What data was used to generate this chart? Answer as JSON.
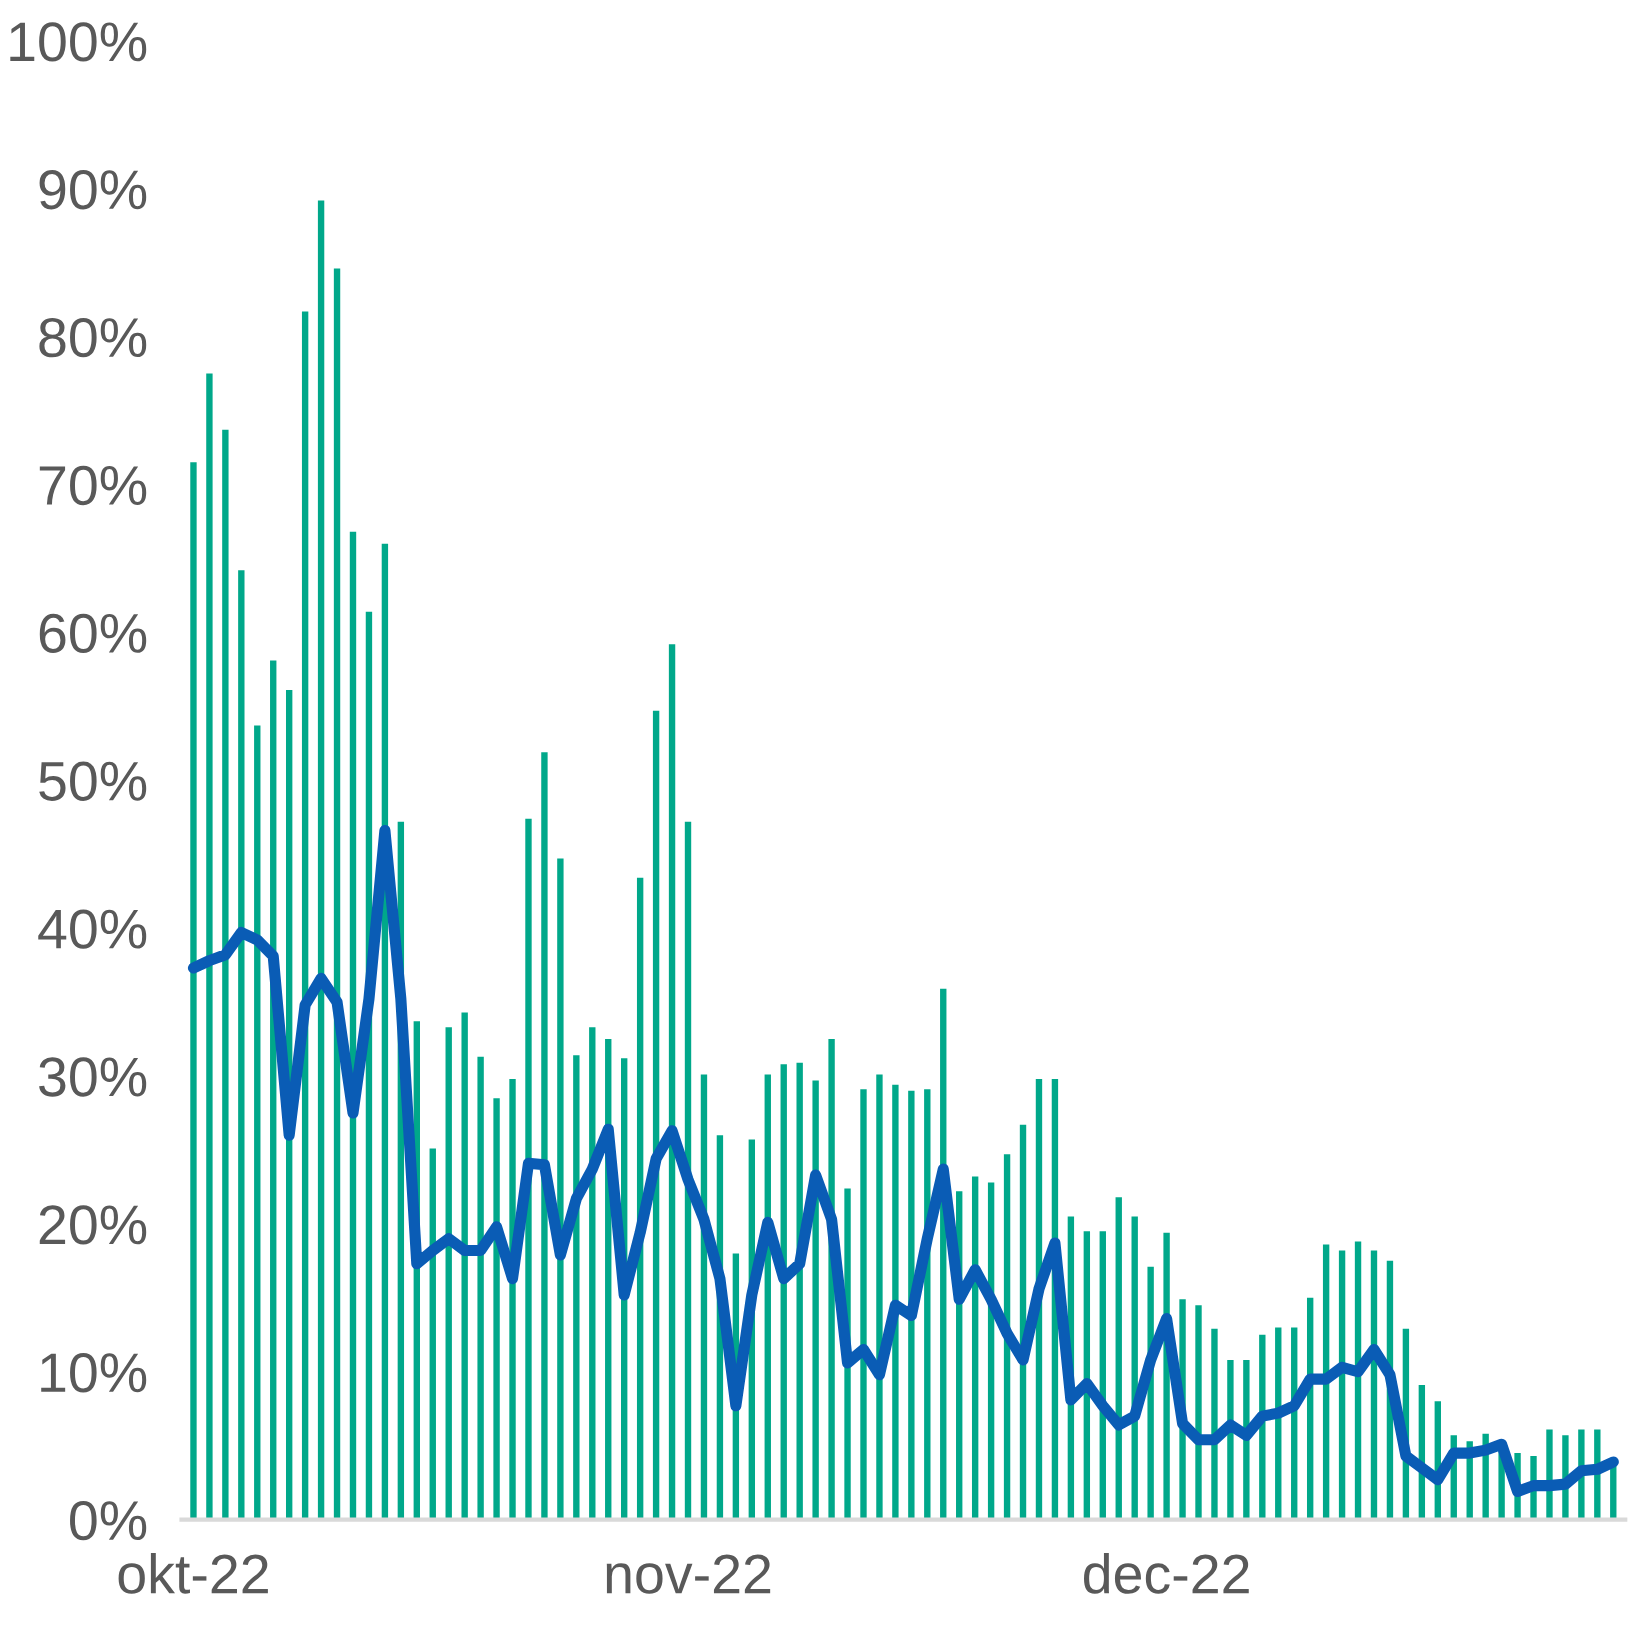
{
  "chart_data": {
    "type": "bar",
    "x": [
      "2022-10-01",
      "2022-10-02",
      "2022-10-03",
      "2022-10-04",
      "2022-10-05",
      "2022-10-06",
      "2022-10-07",
      "2022-10-08",
      "2022-10-09",
      "2022-10-10",
      "2022-10-11",
      "2022-10-12",
      "2022-10-13",
      "2022-10-14",
      "2022-10-15",
      "2022-10-16",
      "2022-10-17",
      "2022-10-18",
      "2022-10-19",
      "2022-10-20",
      "2022-10-21",
      "2022-10-22",
      "2022-10-23",
      "2022-10-24",
      "2022-10-25",
      "2022-10-26",
      "2022-10-27",
      "2022-10-28",
      "2022-10-29",
      "2022-10-30",
      "2022-10-31",
      "2022-11-01",
      "2022-11-02",
      "2022-11-03",
      "2022-11-04",
      "2022-11-05",
      "2022-11-06",
      "2022-11-07",
      "2022-11-08",
      "2022-11-09",
      "2022-11-10",
      "2022-11-11",
      "2022-11-12",
      "2022-11-13",
      "2022-11-14",
      "2022-11-15",
      "2022-11-16",
      "2022-11-17",
      "2022-11-18",
      "2022-11-19",
      "2022-11-20",
      "2022-11-21",
      "2022-11-22",
      "2022-11-23",
      "2022-11-24",
      "2022-11-25",
      "2022-11-26",
      "2022-11-27",
      "2022-11-28",
      "2022-11-29",
      "2022-11-30",
      "2022-12-01",
      "2022-12-02",
      "2022-12-03",
      "2022-12-04",
      "2022-12-05",
      "2022-12-06",
      "2022-12-07",
      "2022-12-08",
      "2022-12-09",
      "2022-12-10",
      "2022-12-11",
      "2022-12-12",
      "2022-12-13",
      "2022-12-14",
      "2022-12-15",
      "2022-12-16",
      "2022-12-17",
      "2022-12-18",
      "2022-12-19",
      "2022-12-20",
      "2022-12-21",
      "2022-12-22",
      "2022-12-23",
      "2022-12-24",
      "2022-12-25",
      "2022-12-26",
      "2022-12-27",
      "2022-12-28",
      "2022-12-29"
    ],
    "series": [
      {
        "color": "#00a88a",
        "values": [
          71.5,
          77.5,
          73.7,
          64.2,
          53.7,
          58.1,
          56.1,
          81.7,
          89.2,
          84.6,
          66.8,
          61.4,
          66,
          47.2,
          33.7,
          25.1,
          33.3,
          34.3,
          31.3,
          28.5,
          29.8,
          47.4,
          51.9,
          44.7,
          31.4,
          33.3,
          32.5,
          31.2,
          43.4,
          54.7,
          59.2,
          47.2,
          30.1,
          26,
          18,
          25.7,
          30.1,
          30.8,
          30.9,
          29.7,
          32.5,
          22.4,
          29.1,
          30.1,
          29.4,
          29,
          29.1,
          35.9,
          22.2,
          23.2,
          22.8,
          24.7,
          26.7,
          29.8,
          29.8,
          20.5,
          19.5,
          19.5,
          21.8,
          20.5,
          17.1,
          19.4,
          14.9,
          14.5,
          12.9,
          10.8,
          10.8,
          12.5,
          13,
          13,
          15,
          18.6,
          18.2,
          18.8,
          18.2,
          17.5,
          12.9,
          9.1,
          8,
          5.7,
          5.3,
          5.8,
          5.1,
          4.5,
          4.3,
          6.1,
          5.7,
          6.1,
          6.1,
          3.9
        ]
      },
      {
        "type": "line",
        "color": "#0a5cb5",
        "values": [
          37.3,
          37.8,
          38.2,
          39.7,
          39.2,
          38.1,
          26,
          34.8,
          36.6,
          35,
          27.5,
          35.2,
          46.6,
          35.2,
          17.3,
          18.2,
          19,
          18.2,
          18.2,
          19.8,
          16.3,
          24.1,
          24,
          17.9,
          21.7,
          23.7,
          26.4,
          15.2,
          19.4,
          24.4,
          26.3,
          23,
          20.3,
          16.3,
          7.7,
          15.2,
          20.1,
          16.3,
          17.3,
          23.3,
          20.3,
          10.6,
          11.5,
          9.8,
          14.5,
          13.8,
          19,
          23.7,
          14.9,
          16.9,
          14.9,
          12.6,
          10.8,
          15.6,
          18.7,
          8.1,
          9.2,
          7.7,
          6.4,
          7,
          10.8,
          13.6,
          6.5,
          5.4,
          5.4,
          6.4,
          5.7,
          7,
          7.2,
          7.7,
          9.5,
          9.5,
          10.3,
          10,
          11.5,
          9.8,
          4.3,
          3.5,
          2.7,
          4.5,
          4.5,
          4.7,
          5.1,
          1.9,
          2.3,
          2.3,
          2.4,
          3.3,
          3.4,
          3.9
        ]
      }
    ],
    "xlim": [
      "2022-09-30T06:00",
      "2022-12-29T18:00"
    ],
    "xticks": [
      {
        "value": "2022-10-01",
        "label": "okt-22"
      },
      {
        "value": "2022-11-01",
        "label": "nov-22"
      },
      {
        "value": "2022-12-01",
        "label": "dec-22"
      }
    ],
    "ylim": [
      0,
      100
    ],
    "yticks": [
      {
        "value": 0,
        "label": "0%"
      },
      {
        "value": 10,
        "label": "10%"
      },
      {
        "value": 20,
        "label": "20%"
      },
      {
        "value": 30,
        "label": "30%"
      },
      {
        "value": 40,
        "label": "40%"
      },
      {
        "value": 50,
        "label": "50%"
      },
      {
        "value": 60,
        "label": "60%"
      },
      {
        "value": 70,
        "label": "70%"
      },
      {
        "value": 80,
        "label": "80%"
      },
      {
        "value": 90,
        "label": "90%"
      },
      {
        "value": 100,
        "label": "100%"
      }
    ]
  }
}
